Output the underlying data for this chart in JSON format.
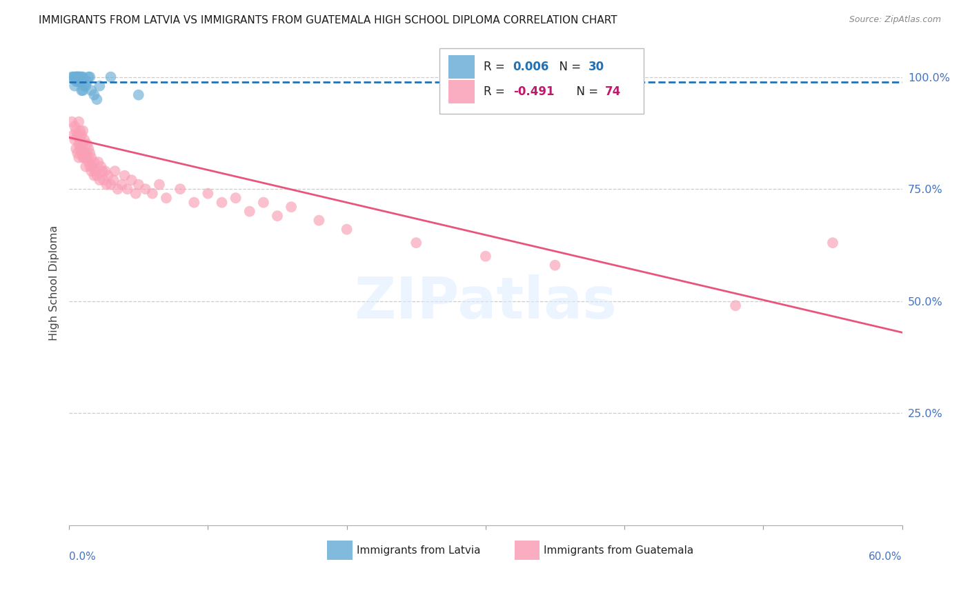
{
  "title": "IMMIGRANTS FROM LATVIA VS IMMIGRANTS FROM GUATEMALA HIGH SCHOOL DIPLOMA CORRELATION CHART",
  "source": "Source: ZipAtlas.com",
  "ylabel": "High School Diploma",
  "xlim": [
    0.0,
    0.6
  ],
  "ylim": [
    0.0,
    1.08
  ],
  "ytick_values": [
    0.25,
    0.5,
    0.75,
    1.0
  ],
  "ytick_labels": [
    "25.0%",
    "50.0%",
    "75.0%",
    "100.0%"
  ],
  "legend_r_latvia": "0.006",
  "legend_n_latvia": "30",
  "legend_r_guatemala": "-0.491",
  "legend_n_guatemala": "74",
  "color_latvia": "#6baed6",
  "color_guatemala": "#fa9fb5",
  "trendline_latvia_color": "#2171b5",
  "trendline_guatemala_color": "#e8547a",
  "background_color": "#ffffff",
  "watermark_text": "ZIPatlas",
  "latvia_x": [
    0.002,
    0.003,
    0.004,
    0.004,
    0.005,
    0.005,
    0.005,
    0.006,
    0.006,
    0.006,
    0.007,
    0.007,
    0.007,
    0.008,
    0.008,
    0.009,
    0.009,
    0.01,
    0.01,
    0.011,
    0.012,
    0.013,
    0.014,
    0.015,
    0.016,
    0.018,
    0.02,
    0.022,
    0.03,
    0.05
  ],
  "latvia_y": [
    1.0,
    1.0,
    1.0,
    0.98,
    1.0,
    0.99,
    1.0,
    0.99,
    1.0,
    1.0,
    1.0,
    0.99,
    1.0,
    1.0,
    0.99,
    0.97,
    1.0,
    1.0,
    0.97,
    0.98,
    0.98,
    0.99,
    1.0,
    1.0,
    0.97,
    0.96,
    0.95,
    0.98,
    1.0,
    0.96
  ],
  "guatemala_x": [
    0.002,
    0.003,
    0.004,
    0.004,
    0.005,
    0.005,
    0.006,
    0.006,
    0.007,
    0.007,
    0.007,
    0.008,
    0.008,
    0.008,
    0.009,
    0.009,
    0.01,
    0.01,
    0.01,
    0.011,
    0.011,
    0.012,
    0.012,
    0.013,
    0.013,
    0.014,
    0.014,
    0.015,
    0.015,
    0.016,
    0.016,
    0.017,
    0.018,
    0.018,
    0.019,
    0.02,
    0.021,
    0.022,
    0.023,
    0.024,
    0.025,
    0.026,
    0.027,
    0.028,
    0.03,
    0.032,
    0.033,
    0.035,
    0.038,
    0.04,
    0.042,
    0.045,
    0.048,
    0.05,
    0.055,
    0.06,
    0.065,
    0.07,
    0.08,
    0.09,
    0.1,
    0.11,
    0.12,
    0.13,
    0.14,
    0.15,
    0.16,
    0.18,
    0.2,
    0.25,
    0.3,
    0.35,
    0.48,
    0.55
  ],
  "guatemala_y": [
    0.9,
    0.87,
    0.86,
    0.89,
    0.84,
    0.88,
    0.83,
    0.87,
    0.85,
    0.82,
    0.9,
    0.84,
    0.86,
    0.88,
    0.83,
    0.87,
    0.82,
    0.85,
    0.88,
    0.82,
    0.86,
    0.8,
    0.83,
    0.82,
    0.85,
    0.81,
    0.84,
    0.8,
    0.83,
    0.79,
    0.82,
    0.8,
    0.78,
    0.81,
    0.79,
    0.78,
    0.81,
    0.77,
    0.8,
    0.79,
    0.77,
    0.79,
    0.76,
    0.78,
    0.76,
    0.77,
    0.79,
    0.75,
    0.76,
    0.78,
    0.75,
    0.77,
    0.74,
    0.76,
    0.75,
    0.74,
    0.76,
    0.73,
    0.75,
    0.72,
    0.74,
    0.72,
    0.73,
    0.7,
    0.72,
    0.69,
    0.71,
    0.68,
    0.66,
    0.63,
    0.6,
    0.58,
    0.49,
    0.63
  ]
}
